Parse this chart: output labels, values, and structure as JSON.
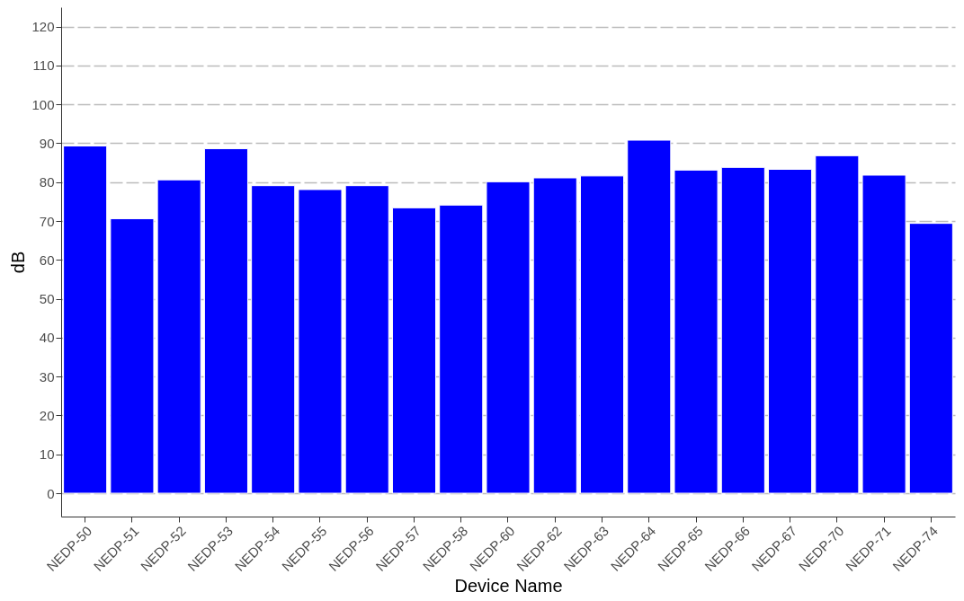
{
  "chart_data": {
    "type": "bar",
    "xlabel": "Device Name",
    "ylabel": "dB",
    "categories": [
      "NEDP-50",
      "NEDP-51",
      "NEDP-52",
      "NEDP-53",
      "NEDP-54",
      "NEDP-55",
      "NEDP-56",
      "NEDP-57",
      "NEDP-58",
      "NEDP-60",
      "NEDP-62",
      "NEDP-63",
      "NEDP-64",
      "NEDP-65",
      "NEDP-66",
      "NEDP-67",
      "NEDP-70",
      "NEDP-71",
      "NEDP-74"
    ],
    "values": [
      89.3,
      70.6,
      80.6,
      88.6,
      79.1,
      78.1,
      79.1,
      73.4,
      74.1,
      80.1,
      81.1,
      81.6,
      90.8,
      83.1,
      83.8,
      83.3,
      86.8,
      81.8,
      69.4
    ],
    "color": "#0000ff",
    "ylim": [
      -6,
      125
    ],
    "yticks": [
      0,
      10,
      20,
      30,
      40,
      50,
      60,
      70,
      80,
      90,
      100,
      110,
      120
    ],
    "grid": "y"
  }
}
